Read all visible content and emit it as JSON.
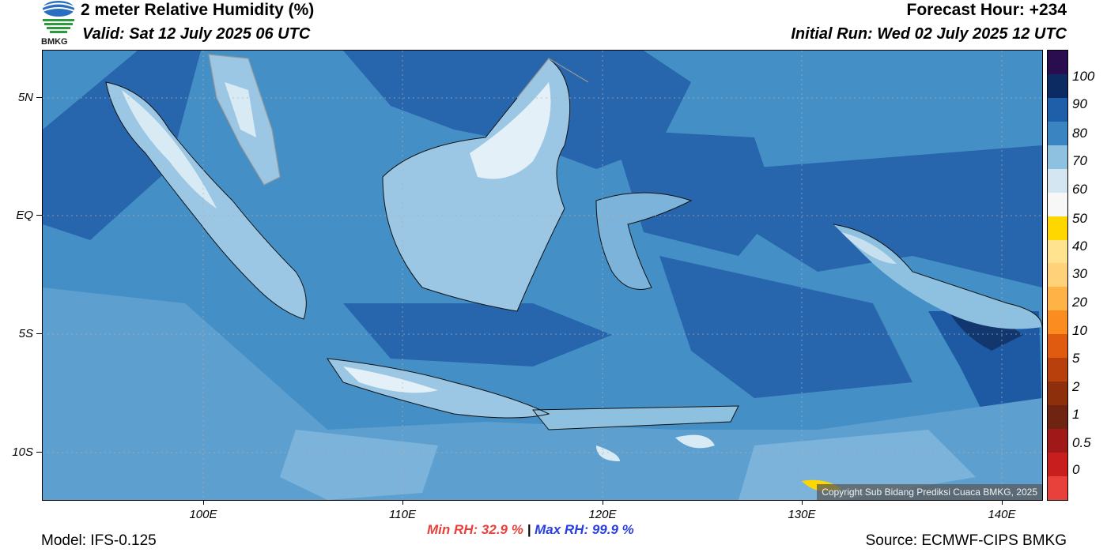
{
  "header": {
    "title": "2 meter Relative Humidity (%)",
    "valid": "Valid: Sat 12 July 2025 06 UTC",
    "forecast_hour": "Forecast Hour: +234",
    "initial_run": "Initial Run: Wed 02 July 2025 12 UTC",
    "logo_text": "BMKG"
  },
  "map": {
    "copyright": "Copyright Sub Bidang Prediksi Cuaca BMKG, 2025",
    "lat_labels": [
      "5N",
      "EQ",
      "5S",
      "10S"
    ],
    "lon_labels": [
      "100E",
      "110E",
      "120E",
      "130E",
      "140E"
    ]
  },
  "colorbar": {
    "labels": [
      "100",
      "90",
      "80",
      "70",
      "60",
      "50",
      "40",
      "30",
      "20",
      "10",
      "5",
      "2",
      "1",
      "0.5",
      "0"
    ],
    "colors": [
      "#2a0d4e",
      "#0d2b63",
      "#1f5faa",
      "#3b84c2",
      "#8ec1e0",
      "#d3e6f1",
      "#f7f7f7",
      "#ffd700",
      "#ffe38f",
      "#ffd27a",
      "#ffb347",
      "#fb8c1f",
      "#e05a10",
      "#b8400c",
      "#8e2f0c",
      "#6e2410",
      "#a01818",
      "#c81e1e",
      "#e8413c"
    ]
  },
  "footer": {
    "model": "Model: IFS-0.125",
    "source": "Source: ECMWF-CIPS BMKG",
    "min_rh": "Min RH:  32.9 %",
    "separator": "|",
    "max_rh": "Max RH:  99.9 %"
  }
}
